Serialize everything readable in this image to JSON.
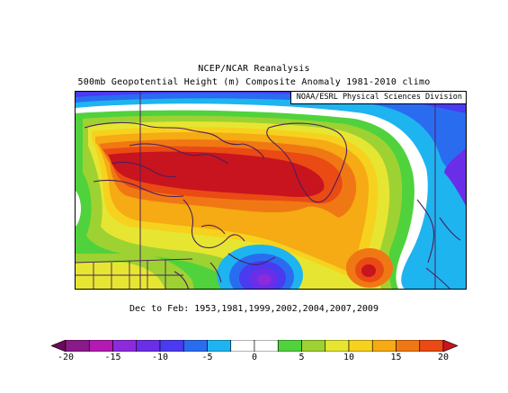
{
  "header": {
    "line1": "NCEP/NCAR Reanalysis",
    "line2": "500mb Geopotential Height (m) Composite Anomaly 1981-2010 climo"
  },
  "map": {
    "credit": "NOAA/ESRL Physical Sciences Division",
    "region": "North America / North Atlantic / Greenland",
    "colors": {
      "ocean": "#0000ff",
      "coastline": "#4a1f5c"
    }
  },
  "subtitle": "Dec to Feb: 1953,1981,1999,2002,2004,2007,2009",
  "colorbar": {
    "min": -20,
    "max": 20,
    "bins": [
      {
        "from": -22.5,
        "to": -20,
        "color": "#6a0a5a"
      },
      {
        "from": -20,
        "to": -17.5,
        "color": "#8a1a8a"
      },
      {
        "from": -17.5,
        "to": -15,
        "color": "#b21ab2"
      },
      {
        "from": -15,
        "to": -12.5,
        "color": "#8c2adc"
      },
      {
        "from": -12.5,
        "to": -10,
        "color": "#6a2ee8"
      },
      {
        "from": -10,
        "to": -7.5,
        "color": "#4a3af0"
      },
      {
        "from": -7.5,
        "to": -5,
        "color": "#2a6cf0"
      },
      {
        "from": -5,
        "to": -2.5,
        "color": "#1eb4f0"
      },
      {
        "from": -2.5,
        "to": 0,
        "color": "#ffffff"
      },
      {
        "from": 0,
        "to": 2.5,
        "color": "#ffffff"
      },
      {
        "from": 2.5,
        "to": 5,
        "color": "#50d23c"
      },
      {
        "from": 5,
        "to": 7.5,
        "color": "#9ed232"
      },
      {
        "from": 7.5,
        "to": 10,
        "color": "#e6e632"
      },
      {
        "from": 10,
        "to": 12.5,
        "color": "#f6d21e"
      },
      {
        "from": 12.5,
        "to": 15,
        "color": "#f6aa14"
      },
      {
        "from": 15,
        "to": 17.5,
        "color": "#f07814"
      },
      {
        "from": 17.5,
        "to": 20,
        "color": "#ea4a14"
      },
      {
        "from": 20,
        "to": 22.5,
        "color": "#c8141e"
      }
    ],
    "ticks": [
      "-20",
      "-15",
      "-10",
      "-5",
      "0",
      "5",
      "10",
      "15",
      "20"
    ]
  }
}
